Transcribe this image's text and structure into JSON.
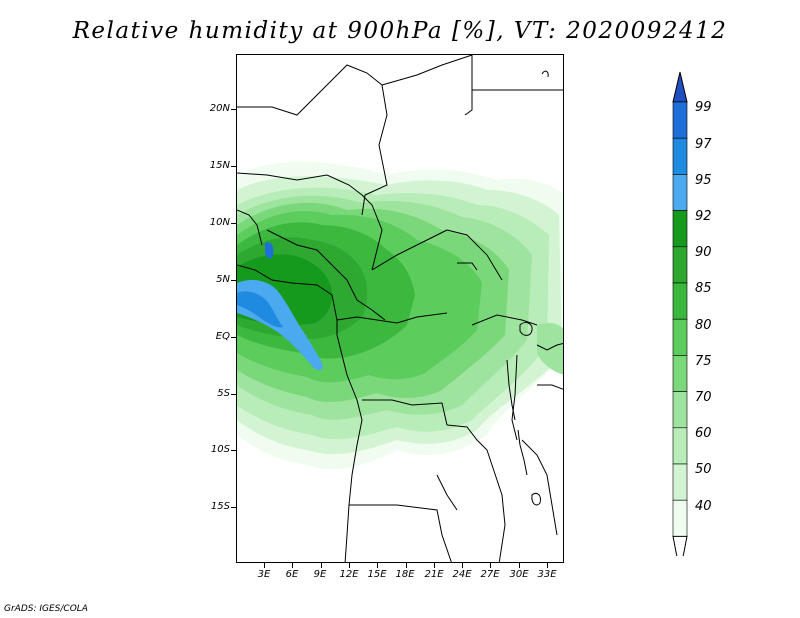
{
  "title": "Relative humidity at 900hPa [%], VT: 2020092412",
  "credit": "GrADS: IGES/COLA",
  "lat_labels": [
    "20N",
    "15N",
    "10N",
    "5N",
    "EQ",
    "5S",
    "10S",
    "15S"
  ],
  "lon_labels": [
    "3E",
    "6E",
    "9E",
    "12E",
    "15E",
    "18E",
    "21E",
    "24E",
    "27E",
    "30E",
    "33E"
  ],
  "colorbar": {
    "labels": [
      "99",
      "97",
      "95",
      "92",
      "90",
      "85",
      "80",
      "75",
      "70",
      "60",
      "50",
      "40"
    ],
    "colors": [
      "#1f6fd8",
      "#1e8be0",
      "#4aa9ef",
      "#159a1e",
      "#2fa831",
      "#3db83f",
      "#5ccc5c",
      "#7ad87a",
      "#9ee39e",
      "#b8ecb8",
      "#d3f4d3",
      "#effcef"
    ],
    "top_arrow_color": "#1f4fc0",
    "bottom_arrow_color": "#ffffff"
  }
}
